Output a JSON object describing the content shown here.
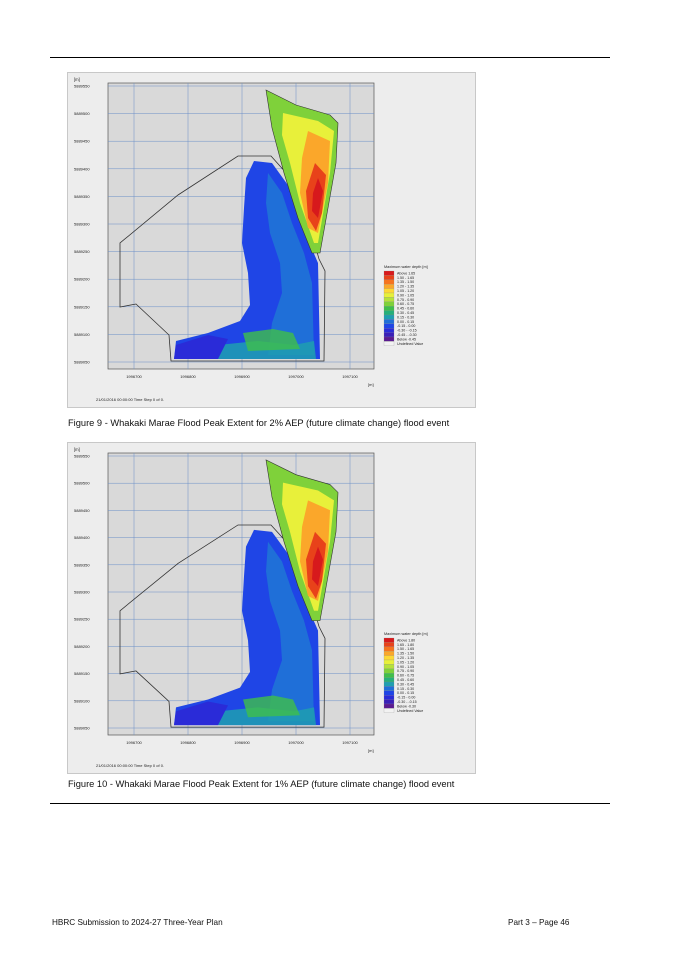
{
  "figures": [
    {
      "unit": "[m]",
      "y_ticks": [
        "5889550",
        "5889500",
        "5889450",
        "5889400",
        "5889350",
        "5889300",
        "5889250",
        "5889200",
        "5889150",
        "5889100",
        "5889050"
      ],
      "x_ticks": [
        "1996700",
        "1996800",
        "1996900",
        "1997000",
        "1997100"
      ],
      "x_unit": "[m]",
      "timestamp": "21/01/2016 00:00:00  Time Step 0 of 0.",
      "legend_title": "Maximum water depth [m]",
      "legend": [
        {
          "label": "Above  1.65",
          "color": "#d7191c"
        },
        {
          "label": "1.50 - 1.65",
          "color": "#e8421a"
        },
        {
          "label": "1.35 - 1.50",
          "color": "#f6741f"
        },
        {
          "label": "1.20 - 1.35",
          "color": "#fba72a"
        },
        {
          "label": "1.05 - 1.20",
          "color": "#fdd835"
        },
        {
          "label": "0.90 - 1.05",
          "color": "#e8f03a"
        },
        {
          "label": "0.75 - 0.90",
          "color": "#b6e23a"
        },
        {
          "label": "0.60 - 0.75",
          "color": "#7fd13a"
        },
        {
          "label": "0.45 - 0.60",
          "color": "#3fbf4a"
        },
        {
          "label": "0.30 - 0.45",
          "color": "#26b07a"
        },
        {
          "label": "0.15 - 0.30",
          "color": "#1f9fb0"
        },
        {
          "label": "0.00 - 0.15",
          "color": "#1f6fd8"
        },
        {
          "label": "-0.15 - 0.00",
          "color": "#1f45e6"
        },
        {
          "label": "-0.30 - -0.15",
          "color": "#2a2bd8"
        },
        {
          "label": "-0.45 - -0.30",
          "color": "#3a1fb8"
        },
        {
          "label": "Below  -0.45",
          "color": "#5a1a90"
        },
        {
          "label": "Undefined Value",
          "color": "#f2f2f2"
        }
      ],
      "caption": "Figure 9 - Whakaki Marae Flood Peak Extent for 2% AEP (future climate change) flood event"
    },
    {
      "unit": "[m]",
      "y_ticks": [
        "5889550",
        "5889500",
        "5889450",
        "5889400",
        "5889350",
        "5889300",
        "5889250",
        "5889200",
        "5889150",
        "5889100",
        "5889050"
      ],
      "x_ticks": [
        "1996700",
        "1996800",
        "1996900",
        "1997000",
        "1997100"
      ],
      "x_unit": "[m]",
      "timestamp": "21/01/2016 00:00:00  Time Step 0 of 0.",
      "legend_title": "Maximum water depth [m]",
      "legend": [
        {
          "label": "Above  1.80",
          "color": "#d7191c"
        },
        {
          "label": "1.65 - 1.80",
          "color": "#e8421a"
        },
        {
          "label": "1.50 - 1.65",
          "color": "#f6741f"
        },
        {
          "label": "1.35 - 1.50",
          "color": "#fba72a"
        },
        {
          "label": "1.20 - 1.35",
          "color": "#fdd835"
        },
        {
          "label": "1.05 - 1.20",
          "color": "#e8f03a"
        },
        {
          "label": "0.90 - 1.05",
          "color": "#b6e23a"
        },
        {
          "label": "0.75 - 0.90",
          "color": "#7fd13a"
        },
        {
          "label": "0.60 - 0.75",
          "color": "#3fbf4a"
        },
        {
          "label": "0.45 - 0.60",
          "color": "#26b07a"
        },
        {
          "label": "0.30 - 0.45",
          "color": "#1f9fb0"
        },
        {
          "label": "0.15 - 0.30",
          "color": "#1f6fd8"
        },
        {
          "label": "0.00 - 0.15",
          "color": "#1f45e6"
        },
        {
          "label": "-0.15 - 0.00",
          "color": "#2a2bd8"
        },
        {
          "label": "-0.30 - -0.15",
          "color": "#3a1fb8"
        },
        {
          "label": "Below  -0.30",
          "color": "#5a1a90"
        },
        {
          "label": "Undefined Value",
          "color": "#f2f2f2"
        }
      ],
      "caption": "Figure 10 - Whakaki Marae Flood Peak Extent for 1% AEP (future climate change) flood event"
    }
  ],
  "footer": {
    "left": "HBRC Submission to 2024-27 Three-Year Plan",
    "right": "Part 3 – Page 46"
  }
}
